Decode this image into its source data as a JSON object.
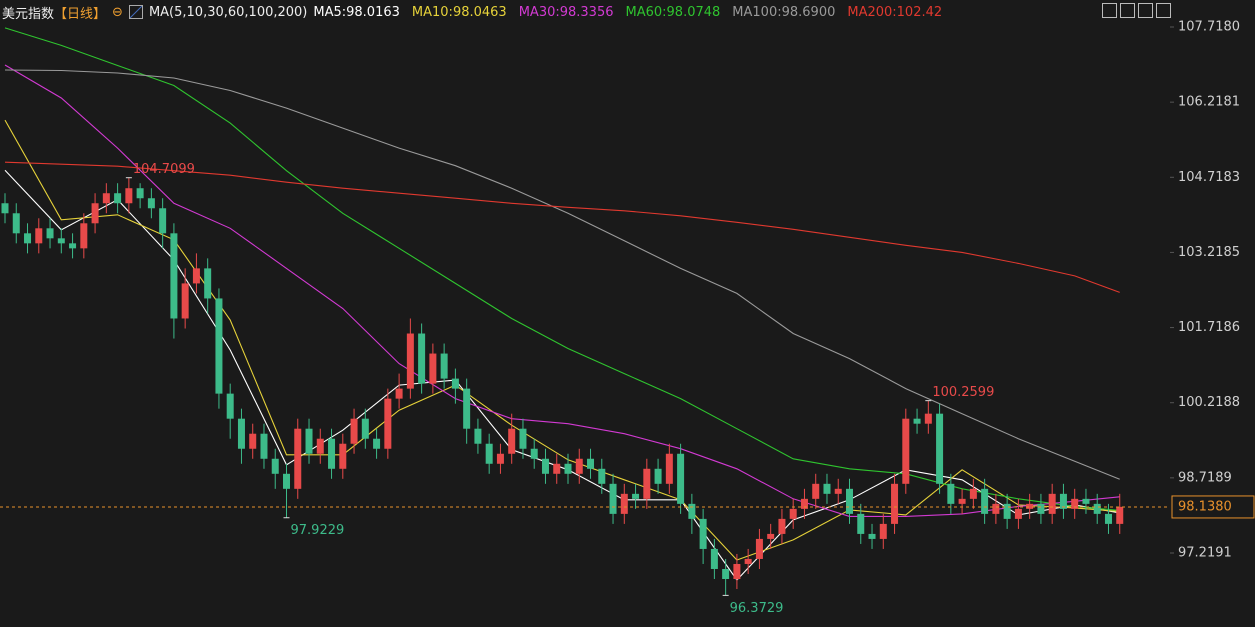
{
  "chart_data": {
    "type": "candlestick",
    "title": "美元指数",
    "period": "【日线】",
    "indicator": "MA(5,10,30,60,100,200)",
    "up_color": "#e84a4a",
    "down_color": "#3dbb8a",
    "ylim": [
      95.742,
      108.257
    ],
    "yticks": [
      {
        "value": 107.718,
        "label": "107.7180"
      },
      106.2181,
      104.7183,
      103.2185,
      101.7186,
      100.2188,
      98.7189,
      97.2191
    ],
    "last_price": {
      "value": 98.138,
      "label": "98.1380"
    },
    "categories": [
      null,
      null,
      null,
      null,
      null,
      null,
      null,
      null,
      null,
      null,
      null,
      null,
      null,
      null,
      null,
      null,
      null,
      null,
      null,
      null,
      null,
      null,
      null,
      null,
      null,
      null,
      null,
      null,
      null,
      null,
      null,
      null,
      null,
      null,
      null,
      null,
      null,
      null,
      null,
      null,
      null,
      null,
      null,
      null,
      null,
      null,
      null,
      null,
      null,
      null,
      null,
      null,
      null,
      null,
      null,
      null,
      null,
      null,
      null,
      null,
      null,
      null,
      null,
      null,
      null,
      null,
      null,
      null,
      null,
      null,
      null,
      null,
      null,
      null,
      null,
      null,
      null,
      null,
      null,
      null,
      null,
      null,
      null,
      null,
      null,
      null,
      null,
      null,
      null,
      null,
      null,
      null,
      null,
      null,
      null,
      null,
      null,
      null,
      null,
      null
    ],
    "open": [
      104.2,
      104.0,
      103.6,
      103.4,
      103.7,
      103.5,
      103.4,
      103.3,
      103.8,
      104.2,
      104.4,
      104.2,
      104.5,
      104.3,
      104.1,
      103.6,
      101.9,
      102.6,
      102.9,
      102.3,
      100.4,
      99.9,
      99.3,
      99.6,
      99.1,
      98.8,
      98.5,
      99.7,
      99.2,
      99.5,
      98.9,
      99.4,
      99.9,
      99.5,
      99.3,
      100.3,
      100.5,
      101.6,
      100.6,
      101.2,
      100.7,
      100.5,
      99.7,
      99.4,
      99.0,
      99.2,
      99.7,
      99.3,
      99.1,
      98.8,
      99.0,
      98.8,
      99.1,
      98.9,
      98.6,
      98.0,
      98.4,
      98.3,
      98.9,
      98.6,
      99.2,
      98.2,
      97.9,
      97.3,
      96.9,
      96.7,
      97.0,
      97.1,
      97.5,
      97.6,
      97.9,
      98.1,
      98.3,
      98.6,
      98.4,
      98.5,
      98.0,
      97.6,
      97.5,
      97.8,
      98.6,
      99.9,
      99.8,
      100.0,
      98.6,
      98.2,
      98.3,
      98.5,
      98.0,
      98.2,
      97.9,
      98.1,
      98.2,
      98.0,
      98.4,
      98.1,
      98.3,
      98.2,
      98.0,
      97.8
    ],
    "high": [
      104.4,
      104.2,
      103.8,
      103.9,
      103.9,
      103.7,
      103.6,
      104.0,
      104.4,
      104.6,
      104.6,
      104.7099,
      104.6,
      104.5,
      104.3,
      103.8,
      102.9,
      103.2,
      103.1,
      102.5,
      100.6,
      100.1,
      99.8,
      99.8,
      99.3,
      99.0,
      99.9,
      99.9,
      99.7,
      99.7,
      99.6,
      100.1,
      100.1,
      99.7,
      100.5,
      100.8,
      101.9,
      101.8,
      101.4,
      101.4,
      100.9,
      100.7,
      99.9,
      99.6,
      99.4,
      100.0,
      99.9,
      99.5,
      99.3,
      99.2,
      99.2,
      99.3,
      99.3,
      99.1,
      98.8,
      98.6,
      98.6,
      99.1,
      99.1,
      99.4,
      99.4,
      98.4,
      98.1,
      97.5,
      97.1,
      97.2,
      97.3,
      97.7,
      97.8,
      98.1,
      98.3,
      98.5,
      98.8,
      98.8,
      98.7,
      98.7,
      98.2,
      97.8,
      98.0,
      98.8,
      100.1,
      100.1,
      100.2599,
      100.2,
      98.8,
      98.5,
      98.7,
      98.7,
      98.4,
      98.4,
      98.3,
      98.4,
      98.4,
      98.6,
      98.6,
      98.5,
      98.5,
      98.4,
      98.2,
      98.4
    ],
    "low": [
      103.8,
      103.4,
      103.2,
      103.2,
      103.3,
      103.2,
      103.1,
      103.1,
      103.6,
      104.0,
      104.0,
      104.0,
      104.1,
      103.9,
      103.3,
      101.5,
      101.7,
      102.4,
      102.0,
      100.1,
      99.5,
      99.0,
      99.1,
      98.9,
      98.5,
      97.9229,
      98.3,
      99.0,
      99.0,
      98.7,
      98.7,
      99.2,
      99.3,
      99.1,
      99.1,
      100.1,
      100.3,
      100.4,
      100.4,
      100.5,
      100.2,
      99.4,
      99.2,
      98.8,
      98.8,
      99.0,
      99.1,
      98.9,
      98.6,
      98.6,
      98.6,
      98.6,
      98.7,
      98.4,
      97.8,
      97.8,
      98.1,
      98.1,
      98.4,
      98.4,
      98.0,
      97.6,
      97.0,
      96.7,
      96.3729,
      96.5,
      96.8,
      96.9,
      97.3,
      97.4,
      97.7,
      97.9,
      98.1,
      98.2,
      98.2,
      97.8,
      97.4,
      97.3,
      97.3,
      97.6,
      98.4,
      99.6,
      99.6,
      98.4,
      98.0,
      98.0,
      98.1,
      97.8,
      97.8,
      97.7,
      97.7,
      97.9,
      97.8,
      97.8,
      97.9,
      97.9,
      98.0,
      97.8,
      97.6,
      97.6
    ],
    "close": [
      104.0,
      103.6,
      103.4,
      103.7,
      103.5,
      103.4,
      103.3,
      103.8,
      104.2,
      104.4,
      104.2,
      104.5,
      104.3,
      104.1,
      103.6,
      101.9,
      102.6,
      102.9,
      102.3,
      100.4,
      99.9,
      99.3,
      99.6,
      99.1,
      98.8,
      98.5,
      99.7,
      99.2,
      99.5,
      98.9,
      99.4,
      99.9,
      99.5,
      99.3,
      100.3,
      100.5,
      101.6,
      100.6,
      101.2,
      100.7,
      100.5,
      99.7,
      99.4,
      99.0,
      99.2,
      99.7,
      99.3,
      99.1,
      98.8,
      99.0,
      98.8,
      99.1,
      98.9,
      98.6,
      98.0,
      98.4,
      98.3,
      98.9,
      98.6,
      99.2,
      98.2,
      97.9,
      97.3,
      96.9,
      96.7,
      97.0,
      97.1,
      97.5,
      97.6,
      97.9,
      98.1,
      98.3,
      98.6,
      98.4,
      98.5,
      98.0,
      97.6,
      97.5,
      97.8,
      98.6,
      99.9,
      99.8,
      100.0,
      98.6,
      98.2,
      98.3,
      98.5,
      98.0,
      98.2,
      97.9,
      98.1,
      98.2,
      98.0,
      98.4,
      98.1,
      98.3,
      98.2,
      98.0,
      97.8,
      98.14
    ],
    "series": [
      {
        "name": "MA5:98.0163",
        "color": "#ffffff",
        "x": [
          0,
          5,
          10,
          15,
          20,
          25,
          30,
          35,
          40,
          45,
          50,
          55,
          60,
          65,
          70,
          75,
          80,
          85,
          90,
          95,
          99
        ],
        "values": [
          104.86,
          103.67,
          104.27,
          103.07,
          101.27,
          98.98,
          99.67,
          100.57,
          100.67,
          99.28,
          98.88,
          98.28,
          98.28,
          96.68,
          97.88,
          98.28,
          98.88,
          98.68,
          97.98,
          98.18,
          98.02
        ]
      },
      {
        "name": "MA10:98.0463",
        "color": "#e6d23a",
        "x": [
          0,
          5,
          10,
          15,
          20,
          25,
          30,
          35,
          40,
          45,
          50,
          55,
          60,
          65,
          70,
          75,
          80,
          85,
          90,
          95,
          99
        ],
        "values": [
          105.86,
          103.87,
          103.97,
          103.47,
          101.87,
          99.18,
          99.18,
          100.07,
          100.57,
          99.77,
          99.08,
          98.68,
          98.28,
          97.08,
          97.48,
          98.08,
          97.98,
          98.88,
          98.18,
          98.12,
          98.05
        ]
      },
      {
        "name": "MA30:98.3356",
        "color": "#d23ad2",
        "x": [
          0,
          5,
          10,
          15,
          20,
          25,
          30,
          35,
          40,
          45,
          50,
          55,
          60,
          65,
          70,
          75,
          80,
          85,
          90,
          95,
          99
        ],
        "values": [
          106.96,
          106.3,
          105.3,
          104.2,
          103.7,
          102.9,
          102.1,
          101.0,
          100.3,
          99.9,
          99.8,
          99.6,
          99.3,
          98.9,
          98.3,
          97.95,
          97.95,
          98.0,
          98.15,
          98.25,
          98.34
        ]
      },
      {
        "name": "MA60:98.0748",
        "color": "#2fc42f",
        "x": [
          0,
          5,
          10,
          15,
          20,
          25,
          30,
          35,
          40,
          45,
          50,
          55,
          60,
          65,
          70,
          75,
          80,
          85,
          90,
          95,
          99
        ],
        "values": [
          107.7,
          107.35,
          106.95,
          106.55,
          105.8,
          104.85,
          104.0,
          103.3,
          102.6,
          101.9,
          101.3,
          100.8,
          100.3,
          99.7,
          99.1,
          98.9,
          98.8,
          98.5,
          98.3,
          98.15,
          98.07
        ]
      },
      {
        "name": "MA100:98.6900",
        "color": "#9a9a9a",
        "x": [
          0,
          5,
          10,
          15,
          20,
          25,
          30,
          35,
          40,
          45,
          50,
          55,
          60,
          65,
          70,
          75,
          80,
          85,
          90,
          95,
          99
        ],
        "values": [
          106.86,
          106.85,
          106.8,
          106.7,
          106.45,
          106.1,
          105.7,
          105.3,
          104.95,
          104.5,
          104.0,
          103.45,
          102.9,
          102.4,
          101.6,
          101.1,
          100.5,
          100.0,
          99.5,
          99.05,
          98.69
        ]
      },
      {
        "name": "MA200:102.42",
        "color": "#e0392f",
        "x": [
          0,
          5,
          10,
          15,
          20,
          25,
          30,
          35,
          40,
          45,
          50,
          55,
          60,
          65,
          70,
          75,
          80,
          85,
          90,
          95,
          99
        ],
        "values": [
          105.02,
          104.98,
          104.94,
          104.85,
          104.76,
          104.62,
          104.5,
          104.4,
          104.3,
          104.2,
          104.12,
          104.05,
          103.95,
          103.82,
          103.68,
          103.52,
          103.36,
          103.22,
          103.0,
          102.75,
          102.42
        ]
      }
    ],
    "annotations": [
      104.7099,
      97.9229,
      100.2599,
      96.3729
    ]
  }
}
